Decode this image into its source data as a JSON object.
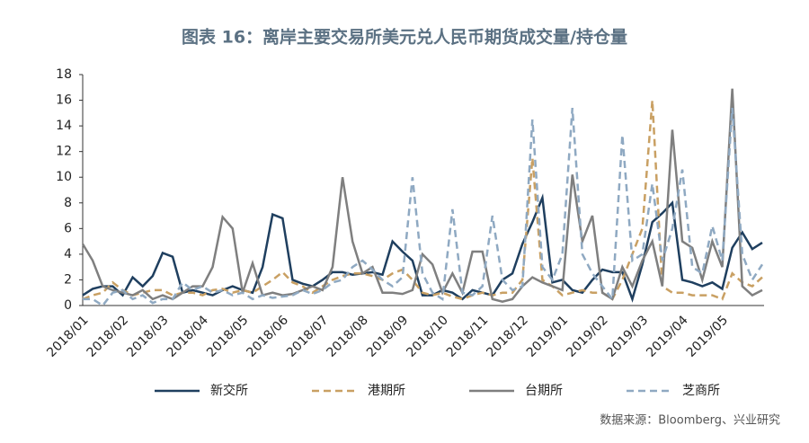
{
  "chart_data": {
    "type": "line",
    "title": "图表 16：离岸主要交易所美元兑人民币期货成交量/持仓量",
    "source": "数据来源：Bloomberg、兴业研究",
    "categories": [
      "2018/01",
      null,
      null,
      null,
      "2018/02",
      null,
      null,
      null,
      "2018/03",
      null,
      null,
      null,
      "2018/04",
      null,
      null,
      null,
      "2018/05",
      null,
      null,
      null,
      "2018/06",
      null,
      null,
      null,
      "2018/07",
      null,
      null,
      null,
      "2018/08",
      null,
      null,
      null,
      "2018/09",
      null,
      null,
      null,
      "2018/10",
      null,
      null,
      null,
      "2018/11",
      null,
      null,
      null,
      "2018/12",
      null,
      null,
      null,
      "2019/01",
      null,
      null,
      null,
      "2019/02",
      null,
      null,
      null,
      "2019/03",
      null,
      null,
      null,
      "2019/04",
      null,
      null,
      null,
      "2019/05",
      null,
      null,
      null,
      null
    ],
    "ylim": [
      0,
      18
    ],
    "yticks": [
      0,
      2,
      4,
      6,
      8,
      10,
      12,
      14,
      16,
      18
    ],
    "legend": "bottom",
    "series": [
      {
        "name": "新交所",
        "color": "#1f3f5f",
        "dash": false,
        "values": [
          0.8,
          1.3,
          1.5,
          1.5,
          0.8,
          2.2,
          1.5,
          2.3,
          4.1,
          3.8,
          1.0,
          1.2,
          1.0,
          0.8,
          1.2,
          1.5,
          1.2,
          1.0,
          3.0,
          7.1,
          6.8,
          2.0,
          1.7,
          1.5,
          2.0,
          2.6,
          2.6,
          2.4,
          2.5,
          2.6,
          2.4,
          5.0,
          4.2,
          3.5,
          0.8,
          0.8,
          1.2,
          1.0,
          0.5,
          1.2,
          1.0,
          0.8,
          2.0,
          2.5,
          4.8,
          6.5,
          8.4,
          1.8,
          2.0,
          1.2,
          1.0,
          2.0,
          2.8,
          2.6,
          2.6,
          0.5,
          3.2,
          6.5,
          7.2,
          8.0,
          2.0,
          1.8,
          1.5,
          1.8,
          1.3,
          4.5,
          5.7,
          4.4,
          4.9
        ]
      },
      {
        "name": "港期所",
        "color": "#c9a063",
        "dash": true,
        "values": [
          0.5,
          0.8,
          1.0,
          1.8,
          1.2,
          0.8,
          1.0,
          1.2,
          1.2,
          0.8,
          1.0,
          1.0,
          0.8,
          1.2,
          1.3,
          1.0,
          1.2,
          1.0,
          1.5,
          2.0,
          2.6,
          1.8,
          1.5,
          1.0,
          1.5,
          2.0,
          2.3,
          2.5,
          2.5,
          2.3,
          2.0,
          2.5,
          2.8,
          2.0,
          1.0,
          0.8,
          1.0,
          0.7,
          0.5,
          0.8,
          1.0,
          0.8,
          1.0,
          1.0,
          2.0,
          11.5,
          2.0,
          1.5,
          0.8,
          1.0,
          1.2,
          1.0,
          1.0,
          0.5,
          2.0,
          4.0,
          6.0,
          16.0,
          1.5,
          1.0,
          1.0,
          0.8,
          0.8,
          0.8,
          0.5,
          2.5,
          1.8,
          1.5,
          2.2
        ]
      },
      {
        "name": "台期所",
        "color": "#7f7f7f",
        "dash": false,
        "values": [
          4.8,
          3.5,
          1.5,
          1.2,
          1.0,
          0.8,
          1.2,
          0.5,
          0.8,
          0.5,
          1.0,
          1.5,
          1.5,
          3.0,
          6.9,
          6.0,
          1.0,
          3.3,
          0.8,
          1.0,
          0.8,
          0.9,
          1.2,
          1.5,
          1.2,
          3.0,
          10.0,
          5.0,
          2.5,
          3.0,
          1.0,
          1.0,
          0.9,
          1.2,
          4.0,
          3.2,
          1.0,
          2.5,
          1.0,
          4.2,
          4.2,
          0.5,
          0.3,
          0.5,
          1.5,
          2.2,
          1.8,
          1.5,
          1.2,
          10.2,
          5.0,
          7.0,
          1.0,
          0.5,
          3.0,
          1.5,
          3.5,
          5.0,
          1.5,
          13.7,
          5.0,
          4.5,
          2.0,
          5.0,
          3.0,
          16.9,
          1.5,
          0.8,
          1.2
        ]
      },
      {
        "name": "芝商所",
        "color": "#8fa9c2",
        "dash": true,
        "values": [
          0.5,
          0.5,
          0.0,
          1.0,
          1.2,
          0.5,
          0.8,
          0.2,
          0.5,
          0.5,
          1.8,
          1.2,
          1.5,
          1.0,
          1.2,
          0.8,
          1.0,
          0.5,
          0.8,
          0.6,
          0.7,
          0.8,
          1.2,
          0.9,
          1.2,
          1.8,
          2.0,
          3.0,
          3.5,
          2.8,
          2.0,
          1.5,
          2.2,
          10.0,
          2.5,
          1.0,
          0.5,
          7.5,
          1.0,
          0.8,
          1.5,
          7.0,
          2.0,
          1.2,
          1.5,
          14.5,
          3.0,
          2.0,
          4.0,
          15.4,
          4.0,
          2.5,
          1.5,
          0.5,
          13.3,
          3.5,
          4.0,
          9.5,
          3.5,
          6.0,
          10.6,
          3.0,
          2.5,
          6.2,
          3.5,
          15.4,
          4.0,
          2.0,
          3.2
        ]
      }
    ]
  }
}
